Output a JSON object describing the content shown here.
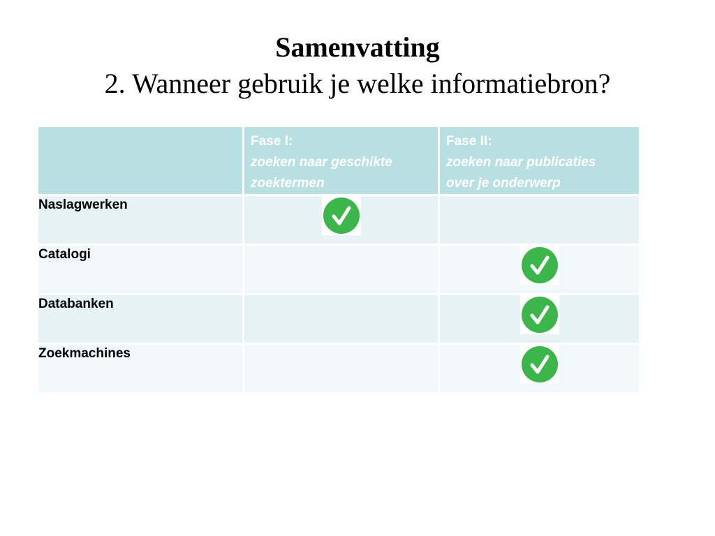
{
  "slide": {
    "title": "Samenvatting",
    "subtitle": "2. Wanneer gebruik je welke informatiebron?"
  },
  "table": {
    "header": {
      "col0": "",
      "phase1_label": "Fase I:",
      "phase1_desc_line1": "zoeken naar geschikte",
      "phase1_desc_line2": "zoektermen",
      "phase2_label": "Fase II:",
      "phase2_desc_line1": "zoeken naar publicaties",
      "phase2_desc_line2": "over je onderwerp"
    },
    "rows": [
      {
        "label": "Naslagwerken",
        "fase1": true,
        "fase2": false
      },
      {
        "label": "Catalogi",
        "fase1": false,
        "fase2": true
      },
      {
        "label": "Databanken",
        "fase1": false,
        "fase2": true
      },
      {
        "label": "Zoekmachines",
        "fase1": false,
        "fase2": true
      }
    ]
  },
  "icons": {
    "check": "check-circle-icon"
  },
  "colors": {
    "header_bg": "#b8dfe2",
    "row_odd_bg": "#e6f2f4",
    "row_even_bg": "#f1f8f9",
    "check_green": "#3cb54a"
  }
}
